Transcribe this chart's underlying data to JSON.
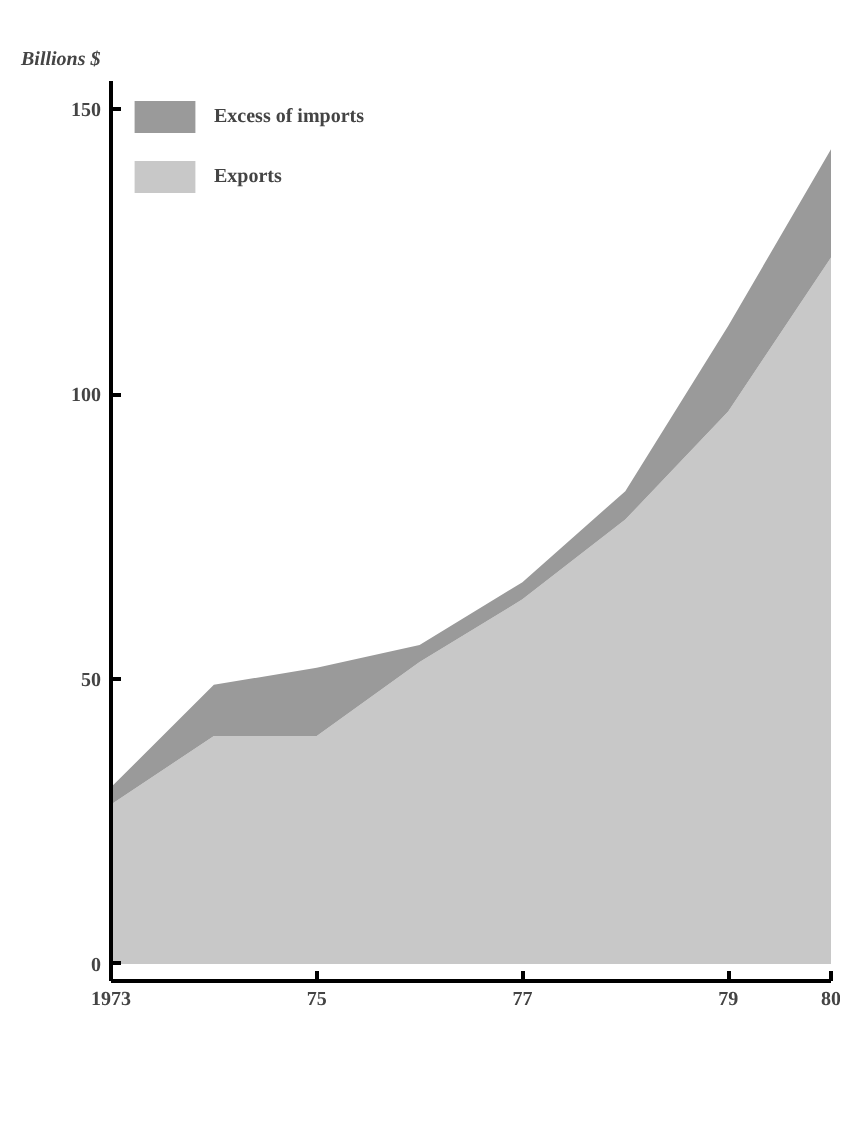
{
  "chart_data": {
    "type": "area",
    "stacked": true,
    "ylabel": "Billions $",
    "x": [
      1973,
      1974,
      1975,
      1976,
      1977,
      1978,
      1979,
      1980
    ],
    "series": [
      {
        "name": "Exports",
        "color": "#c8c8c8",
        "values": [
          28,
          40,
          40,
          53,
          64,
          78,
          97,
          124
        ]
      },
      {
        "name": "Excess of imports",
        "color": "#9a9a9a",
        "values": [
          3,
          9,
          12,
          3,
          3,
          5,
          15,
          19
        ]
      }
    ],
    "xlim": [
      1973,
      1980
    ],
    "xticks": [
      {
        "value": 1973,
        "label": "1973"
      },
      {
        "value": 1975,
        "label": "75"
      },
      {
        "value": 1977,
        "label": "77"
      },
      {
        "value": 1979,
        "label": "79"
      },
      {
        "value": 1980,
        "label": "80"
      }
    ],
    "ylim": [
      -3,
      155
    ],
    "yticks": [
      0,
      50,
      100,
      150
    ],
    "grid": false,
    "legend": "top left"
  }
}
